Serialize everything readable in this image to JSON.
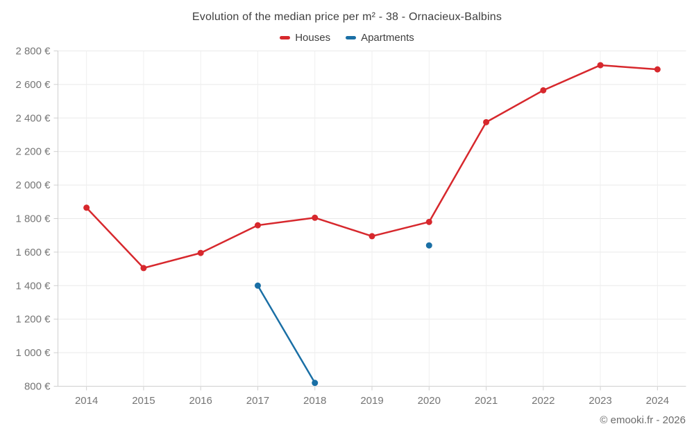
{
  "chart_data": {
    "type": "line",
    "title": "Evolution of the median price per m² - 38 - Ornacieux-Balbins",
    "categories": [
      "2014",
      "2015",
      "2016",
      "2017",
      "2018",
      "2019",
      "2020",
      "2021",
      "2022",
      "2023",
      "2024"
    ],
    "series": [
      {
        "name": "Houses",
        "color": "#d7282d",
        "values": [
          1865,
          1505,
          1595,
          1760,
          1805,
          1695,
          1780,
          2375,
          2565,
          2715,
          2690
        ]
      },
      {
        "name": "Apartments",
        "color": "#1a6fa5",
        "values": [
          null,
          null,
          null,
          1400,
          820,
          null,
          1640,
          null,
          null,
          null,
          null
        ]
      }
    ],
    "ylim": [
      800,
      2800
    ],
    "ytick_step": 200,
    "ytick_labels": [
      "800 €",
      "1 000 €",
      "1 200 €",
      "1 400 €",
      "1 600 €",
      "1 800 €",
      "2 000 €",
      "2 200 €",
      "2 400 €",
      "2 600 €",
      "2 800 €"
    ],
    "grid": true,
    "legend_position": "top"
  },
  "colors": {
    "axis_label": "#757575",
    "title": "#3e3e3e",
    "grid_h": "#e9e9e9",
    "grid_v": "#efefef",
    "axis_line": "#cfcfcf"
  },
  "footer": {
    "copyright": "© emooki.fr - 2026"
  }
}
